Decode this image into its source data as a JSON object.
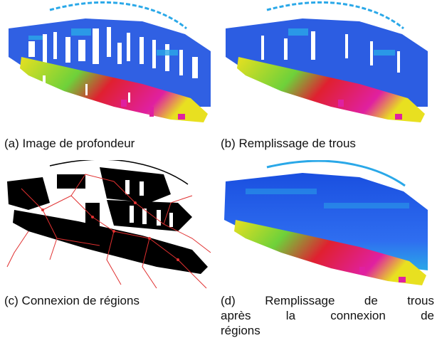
{
  "panels": [
    {
      "id": "a",
      "caption": "(a) Image de profondeur"
    },
    {
      "id": "b",
      "caption": "(b) Remplissage de trous"
    },
    {
      "id": "c",
      "caption": "(c) Connexion de régions"
    },
    {
      "id": "d",
      "caption_lines": [
        "(d) Remplissage de trous",
        "après la connexion de",
        "régions"
      ]
    }
  ],
  "colors": {
    "depth_far": "#1a4fe0",
    "depth_mid": "#2aa8e8",
    "depth_near_green": "#6ed13a",
    "depth_near_yellow": "#e8e020",
    "depth_close_red": "#e02030",
    "depth_closest_magenta": "#e020a0",
    "region_fill": "#000000",
    "region_links": "#e03030"
  }
}
